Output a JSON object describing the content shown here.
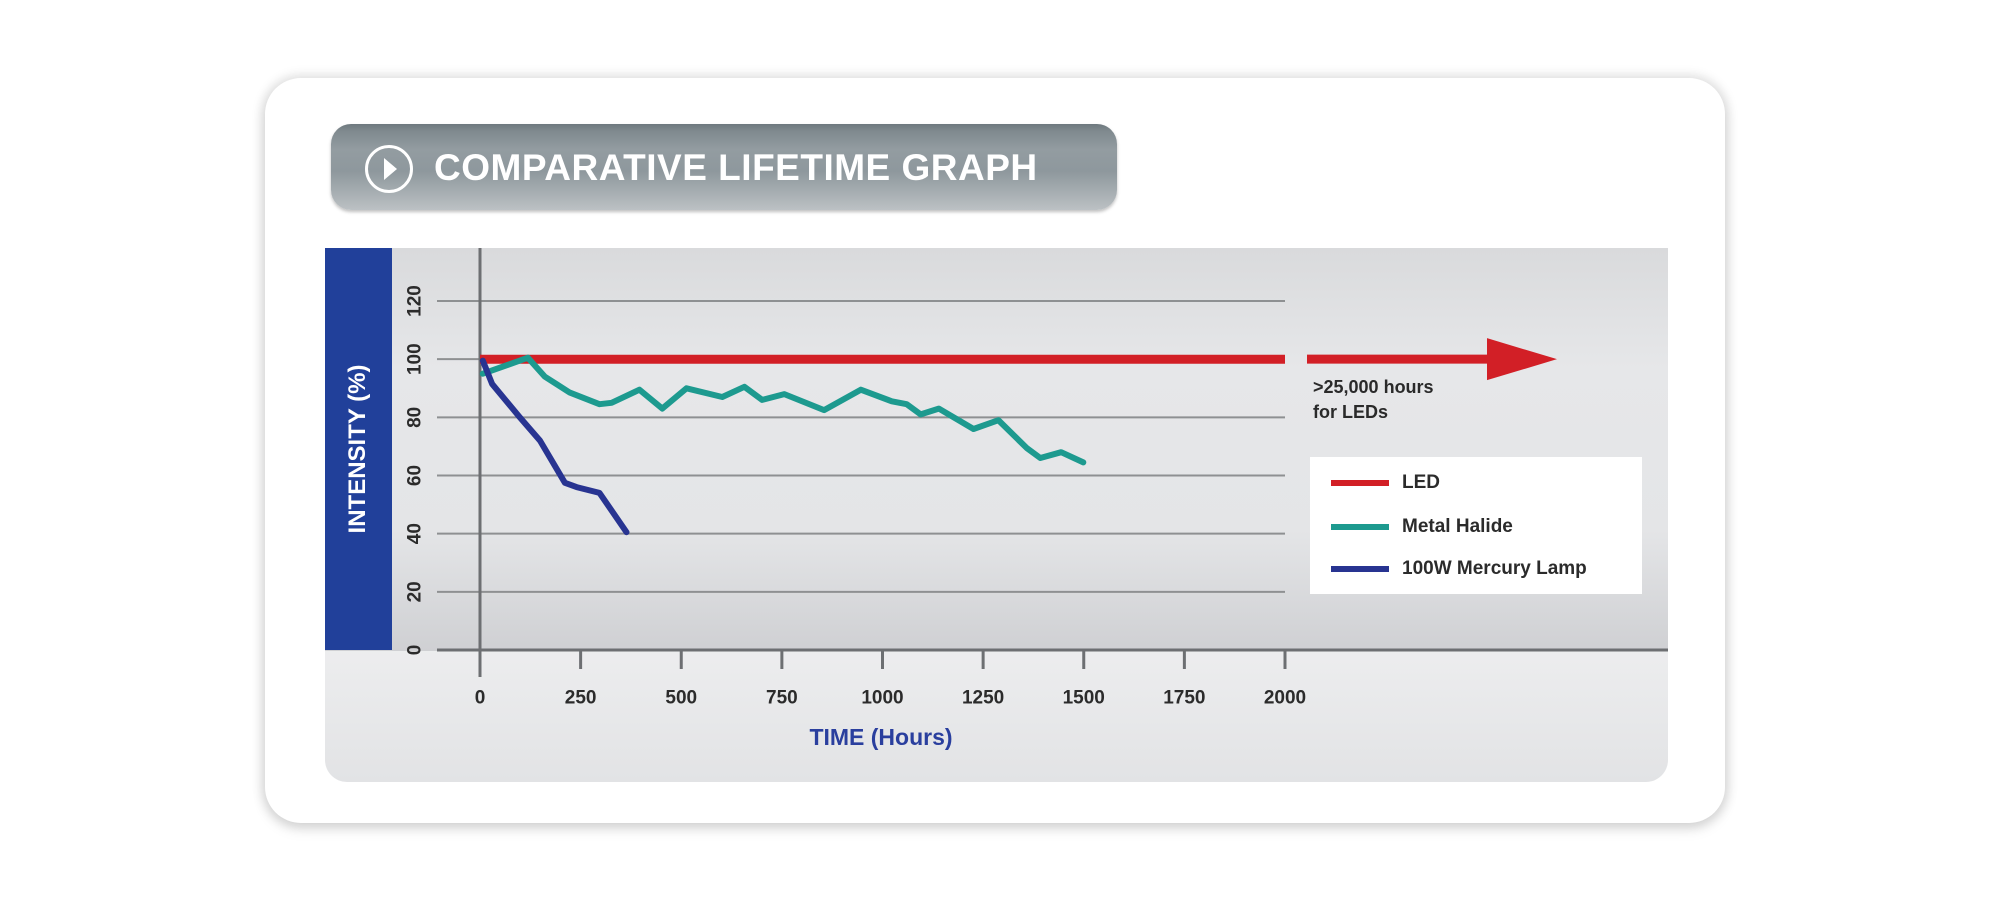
{
  "title": "COMPARATIVE LIFETIME GRAPH",
  "title_icon": "play-circle-icon",
  "chart_data": {
    "type": "line",
    "title": "COMPARATIVE LIFETIME GRAPH",
    "xlabel": "TIME (Hours)",
    "ylabel": "INTENSITY (%)",
    "xlim": [
      0,
      2000
    ],
    "ylim": [
      0,
      120
    ],
    "x_ticks": [
      0,
      250,
      500,
      750,
      1000,
      1250,
      1500,
      1750,
      2000
    ],
    "y_ticks": [
      0,
      20,
      40,
      60,
      80,
      100,
      120
    ],
    "grid": "horizontal",
    "legend_position": "right",
    "series": [
      {
        "name": "LED",
        "color": "#d21f26",
        "points": [
          [
            0,
            100
          ],
          [
            2000,
            100
          ]
        ],
        "continues": true,
        "annotation": ">25,000 hours for LEDs"
      },
      {
        "name": "Metal Halide",
        "color": "#1d9a8f",
        "points": [
          [
            7,
            95
          ],
          [
            119,
            100.5
          ],
          [
            161,
            94
          ],
          [
            223,
            88.5
          ],
          [
            297,
            84.5
          ],
          [
            327,
            85
          ],
          [
            396,
            89.5
          ],
          [
            453,
            83
          ],
          [
            513,
            90
          ],
          [
            602,
            87
          ],
          [
            657,
            90.5
          ],
          [
            701,
            86
          ],
          [
            756,
            88
          ],
          [
            855,
            82.5
          ],
          [
            946,
            89.5
          ],
          [
            1023,
            85.5
          ],
          [
            1060,
            84.5
          ],
          [
            1095,
            81
          ],
          [
            1140,
            83
          ],
          [
            1226,
            76
          ],
          [
            1288,
            79
          ],
          [
            1358,
            69.5
          ],
          [
            1392,
            66
          ],
          [
            1444,
            68
          ],
          [
            1499,
            64.5
          ]
        ]
      },
      {
        "name": "100W Mercury Lamp",
        "color": "#283491",
        "points": [
          [
            7,
            99.5
          ],
          [
            30,
            91.5
          ],
          [
            99,
            80
          ],
          [
            149,
            72
          ],
          [
            211,
            57.5
          ],
          [
            240,
            56
          ],
          [
            297,
            54
          ],
          [
            364,
            40.5
          ]
        ]
      }
    ]
  },
  "annotation": {
    "line1": ">25,000 hours",
    "line2": "for LEDs"
  },
  "legend": [
    {
      "label": "LED",
      "color": "#d21f26"
    },
    {
      "label": "Metal Halide",
      "color": "#1d9a8f"
    },
    {
      "label": "100W Mercury Lamp",
      "color": "#283491"
    }
  ]
}
